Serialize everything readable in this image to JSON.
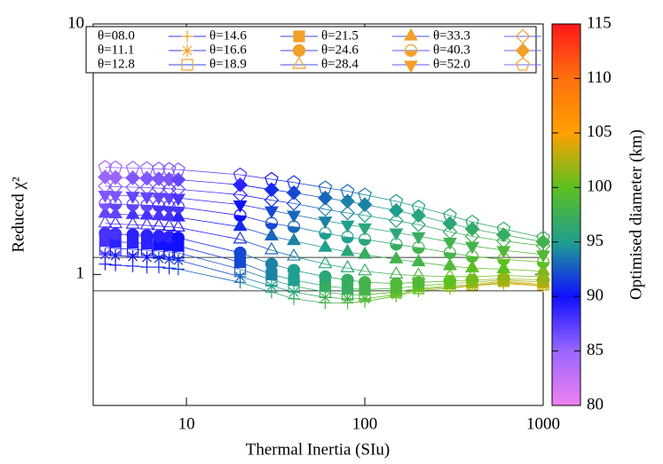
{
  "chart_data": {
    "type": "scatter",
    "x_label": "Thermal Inertia (SIu)",
    "y_label": "Reduced χ²",
    "log_x": true,
    "log_y": true,
    "xlim": [
      3,
      1000
    ],
    "xticks": [
      10,
      100,
      1000
    ],
    "ylim": [
      0.3,
      10
    ],
    "yticks": [
      1,
      10
    ],
    "hlines": [
      1.17,
      0.86
    ],
    "legend_marker_color": "#f2a02a",
    "colorbar": {
      "label": "Optimised diameter (km)",
      "lim": [
        80,
        115
      ],
      "ticks": [
        80,
        85,
        90,
        95,
        100,
        105,
        110,
        115
      ],
      "colors": [
        "#f080f0",
        "#9a66ff",
        "#1010ff",
        "#1f9f8f",
        "#5cc020",
        "#ffa000",
        "#ff7010",
        "#ff1818"
      ]
    },
    "x": [
      3.5,
      4,
      5,
      6,
      7,
      8,
      9,
      20,
      30,
      40,
      60,
      80,
      100,
      150,
      200,
      300,
      400,
      600,
      1000
    ],
    "series": [
      {
        "name": "θ=08.0",
        "marker": "plus",
        "color": "#2c3fe0",
        "values": [
          1.1,
          1.09,
          1.08,
          1.07,
          1.07,
          1.06,
          1.05,
          0.93,
          0.85,
          0.8,
          0.77,
          0.77,
          0.78,
          0.82,
          0.86,
          0.88,
          0.9,
          0.92,
          0.9
        ],
        "diameter": [
          90,
          90,
          91,
          91,
          91,
          91,
          92,
          94,
          96,
          97,
          98,
          99,
          99,
          100,
          101,
          102,
          103,
          104,
          104
        ]
      },
      {
        "name": "θ=11.1",
        "marker": "star",
        "color": "#3040e0",
        "values": [
          1.2,
          1.19,
          1.18,
          1.17,
          1.16,
          1.15,
          1.14,
          0.98,
          0.9,
          0.85,
          0.81,
          0.8,
          0.8,
          0.83,
          0.87,
          0.89,
          0.9,
          0.93,
          0.9
        ],
        "diameter": [
          89,
          90,
          90,
          90,
          91,
          91,
          91,
          93,
          95,
          96,
          98,
          98,
          99,
          100,
          101,
          102,
          103,
          103,
          104
        ]
      },
      {
        "name": "θ=12.8",
        "marker": "square-open",
        "color": "#3444e0",
        "values": [
          1.28,
          1.27,
          1.26,
          1.25,
          1.24,
          1.23,
          1.22,
          1.05,
          0.95,
          0.9,
          0.85,
          0.83,
          0.83,
          0.85,
          0.88,
          0.9,
          0.91,
          0.94,
          0.91
        ],
        "diameter": [
          89,
          89,
          90,
          90,
          90,
          90,
          91,
          93,
          95,
          96,
          97,
          98,
          99,
          100,
          100,
          101,
          102,
          103,
          103
        ]
      },
      {
        "name": "θ=14.6",
        "marker": "square",
        "color": "#3848e2",
        "values": [
          1.36,
          1.35,
          1.34,
          1.33,
          1.32,
          1.31,
          1.3,
          1.12,
          1.0,
          0.95,
          0.9,
          0.88,
          0.87,
          0.88,
          0.9,
          0.92,
          0.93,
          0.95,
          0.93
        ],
        "diameter": [
          88,
          89,
          89,
          89,
          90,
          90,
          90,
          92,
          94,
          95,
          97,
          97,
          98,
          99,
          100,
          101,
          102,
          102,
          103
        ]
      },
      {
        "name": "θ=16.6",
        "marker": "circle",
        "color": "#3c4ce2",
        "values": [
          1.46,
          1.45,
          1.44,
          1.43,
          1.42,
          1.41,
          1.4,
          1.22,
          1.1,
          1.04,
          0.98,
          0.95,
          0.93,
          0.92,
          0.93,
          0.94,
          0.95,
          0.96,
          0.95
        ],
        "diameter": [
          88,
          88,
          89,
          89,
          89,
          89,
          90,
          92,
          94,
          95,
          96,
          97,
          98,
          99,
          99,
          100,
          101,
          102,
          102
        ]
      },
      {
        "name": "θ=18.9",
        "marker": "triangle-open",
        "color": "#4450e4",
        "values": [
          1.6,
          1.59,
          1.58,
          1.57,
          1.56,
          1.55,
          1.54,
          1.38,
          1.25,
          1.18,
          1.1,
          1.06,
          1.03,
          1.0,
          0.99,
          0.98,
          0.98,
          0.99,
          0.98
        ],
        "diameter": [
          87,
          88,
          88,
          88,
          89,
          89,
          89,
          91,
          93,
          94,
          96,
          96,
          97,
          98,
          99,
          100,
          100,
          101,
          101
        ]
      },
      {
        "name": "θ=21.5",
        "marker": "triangle",
        "color": "#4c54e6",
        "values": [
          1.75,
          1.74,
          1.73,
          1.72,
          1.71,
          1.7,
          1.69,
          1.55,
          1.42,
          1.36,
          1.28,
          1.23,
          1.2,
          1.15,
          1.12,
          1.08,
          1.06,
          1.05,
          1.03
        ],
        "diameter": [
          87,
          87,
          88,
          88,
          88,
          88,
          89,
          91,
          93,
          94,
          95,
          96,
          97,
          98,
          98,
          99,
          100,
          100,
          101
        ]
      },
      {
        "name": "θ=24.6",
        "marker": "circle-half",
        "color": "#5458e8",
        "values": [
          1.92,
          1.91,
          1.9,
          1.89,
          1.88,
          1.87,
          1.86,
          1.72,
          1.6,
          1.55,
          1.46,
          1.41,
          1.38,
          1.32,
          1.28,
          1.22,
          1.18,
          1.15,
          1.12
        ],
        "diameter": [
          86,
          87,
          87,
          87,
          88,
          88,
          88,
          90,
          92,
          93,
          95,
          95,
          96,
          97,
          98,
          98,
          99,
          100,
          100
        ]
      },
      {
        "name": "θ=28.4",
        "marker": "triangle-down",
        "color": "#5e5cea",
        "values": [
          2.08,
          2.07,
          2.06,
          2.05,
          2.04,
          2.03,
          2.02,
          1.9,
          1.8,
          1.73,
          1.64,
          1.58,
          1.54,
          1.47,
          1.42,
          1.35,
          1.3,
          1.25,
          1.2
        ],
        "diameter": [
          86,
          86,
          87,
          87,
          87,
          87,
          88,
          90,
          92,
          93,
          94,
          95,
          96,
          96,
          97,
          98,
          98,
          99,
          99
        ]
      },
      {
        "name": "θ=33.3",
        "marker": "diamond-open",
        "color": "#6860ec",
        "values": [
          2.25,
          2.24,
          2.23,
          2.22,
          2.21,
          2.2,
          2.19,
          2.08,
          1.98,
          1.92,
          1.82,
          1.76,
          1.72,
          1.64,
          1.58,
          1.48,
          1.42,
          1.36,
          1.3
        ],
        "diameter": [
          85,
          86,
          86,
          86,
          87,
          87,
          87,
          89,
          91,
          92,
          94,
          94,
          95,
          96,
          96,
          97,
          98,
          98,
          99
        ]
      },
      {
        "name": "θ=40.3",
        "marker": "diamond",
        "color": "#7264ee",
        "values": [
          2.45,
          2.44,
          2.43,
          2.42,
          2.41,
          2.4,
          2.39,
          2.28,
          2.18,
          2.12,
          2.02,
          1.96,
          1.9,
          1.8,
          1.72,
          1.6,
          1.52,
          1.44,
          1.35
        ],
        "diameter": [
          85,
          85,
          86,
          86,
          86,
          86,
          87,
          89,
          91,
          92,
          93,
          94,
          94,
          95,
          96,
          96,
          97,
          97,
          98
        ]
      },
      {
        "name": "θ=52.0",
        "marker": "pentagon-open",
        "color": "#7c68f0",
        "values": [
          2.68,
          2.67,
          2.66,
          2.65,
          2.64,
          2.63,
          2.62,
          2.5,
          2.4,
          2.33,
          2.22,
          2.15,
          2.08,
          1.96,
          1.86,
          1.72,
          1.62,
          1.52,
          1.4
        ],
        "diameter": [
          84,
          85,
          85,
          85,
          86,
          86,
          86,
          88,
          90,
          91,
          93,
          93,
          94,
          95,
          95,
          96,
          96,
          97,
          97
        ]
      }
    ]
  }
}
